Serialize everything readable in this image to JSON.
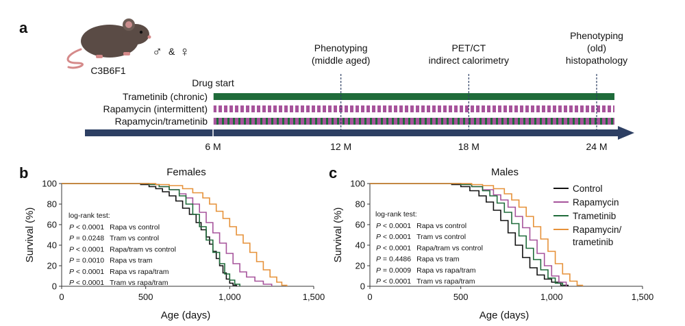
{
  "panel_a": {
    "letter": "a",
    "strain": "C3B6F1",
    "sexes": {
      "male": "♂",
      "amp": "&",
      "female": "♀"
    },
    "drug_start": "Drug start",
    "arms": [
      {
        "label": "Trametinib (chronic)",
        "style": "solid",
        "color": "#1f6b3a"
      },
      {
        "label": "Rapamycin (intermittent)",
        "style": "dashed",
        "color": "#a6539b"
      },
      {
        "label": "Rapamycin/trametinib",
        "style": "alternating",
        "color": "#a6539b",
        "color2": "#1f6b3a"
      }
    ],
    "timeline_color": "#2d3f63",
    "timepoints": [
      {
        "label": "6 M",
        "month": 6,
        "event": []
      },
      {
        "label": "12 M",
        "month": 12,
        "event": [
          "Phenotyping",
          "(middle aged)"
        ]
      },
      {
        "label": "18 M",
        "month": 18,
        "event": [
          "PET/CT",
          "indirect calorimetry"
        ]
      },
      {
        "label": "24 M",
        "month": 24,
        "event": [
          "Phenotyping",
          "(old)",
          "histopathology"
        ]
      }
    ]
  },
  "legend": {
    "items": [
      {
        "label": "Control",
        "color": "#111111"
      },
      {
        "label": "Rapamycin",
        "color": "#a6539b"
      },
      {
        "label": "Trametinib",
        "color": "#1f6b3a"
      },
      {
        "label": "Rapamycin/",
        "label2": "trametinib",
        "color": "#e69138"
      }
    ]
  },
  "chart_data": [
    {
      "type": "line",
      "panel": "b",
      "title": "Females",
      "xlabel": "Age (days)",
      "ylabel": "Survival (%)",
      "xlim": [
        0,
        1500
      ],
      "ylim": [
        0,
        100
      ],
      "xticks": [
        "0",
        "500",
        "1,000",
        "1,500"
      ],
      "yticks": [
        "0",
        "20",
        "40",
        "60",
        "80",
        "100"
      ],
      "stats_header": "log-rank test:",
      "stats": [
        {
          "p": "P",
          "rel": " < 0.0001",
          "comp": "Rapa vs control"
        },
        {
          "p": "P",
          "rel": " = 0.0248",
          "comp": "Tram vs control"
        },
        {
          "p": "P",
          "rel": " < 0.0001",
          "comp": "Rapa/tram vs control"
        },
        {
          "p": "P",
          "rel": " = 0.0010",
          "comp": "Rapa vs tram"
        },
        {
          "p": "P",
          "rel": " < 0.0001",
          "comp": "Rapa vs rapa/tram"
        },
        {
          "p": "P",
          "rel": " < 0.0001",
          "comp": "Tram vs rapa/tram"
        }
      ],
      "series": [
        {
          "name": "Control",
          "color": "#111111",
          "x": [
            0,
            400,
            470,
            520,
            560,
            600,
            640,
            680,
            720,
            760,
            800,
            830,
            860,
            880,
            900,
            920,
            940,
            960,
            980,
            1000,
            1020,
            1040
          ],
          "y": [
            100,
            100,
            99,
            97,
            95,
            92,
            88,
            83,
            76,
            70,
            62,
            55,
            48,
            41,
            34,
            27,
            20,
            13,
            7,
            3,
            1,
            0
          ]
        },
        {
          "name": "Rapamycin",
          "color": "#a6539b",
          "x": [
            0,
            420,
            520,
            580,
            640,
            700,
            740,
            780,
            820,
            860,
            900,
            940,
            980,
            1020,
            1060,
            1100,
            1150,
            1200,
            1250
          ],
          "y": [
            100,
            100,
            99,
            97,
            94,
            90,
            86,
            80,
            72,
            62,
            52,
            42,
            32,
            22,
            14,
            9,
            5,
            2,
            0
          ]
        },
        {
          "name": "Trametinib",
          "color": "#1f6b3a",
          "x": [
            0,
            450,
            520,
            580,
            640,
            700,
            740,
            780,
            820,
            860,
            900,
            940,
            970,
            1000,
            1030,
            1060
          ],
          "y": [
            100,
            100,
            99,
            97,
            94,
            88,
            80,
            70,
            58,
            45,
            33,
            22,
            12,
            6,
            2,
            0
          ]
        },
        {
          "name": "Rapamycin/trametinib",
          "color": "#e69138",
          "x": [
            0,
            480,
            560,
            640,
            720,
            780,
            840,
            880,
            920,
            960,
            1000,
            1040,
            1080,
            1120,
            1160,
            1200,
            1240,
            1280,
            1310,
            1340
          ],
          "y": [
            100,
            100,
            99,
            98,
            95,
            91,
            86,
            80,
            73,
            66,
            58,
            50,
            42,
            33,
            24,
            16,
            9,
            4,
            1,
            0
          ]
        }
      ]
    },
    {
      "type": "line",
      "panel": "c",
      "title": "Males",
      "xlabel": "Age (days)",
      "ylabel": "Survival (%)",
      "xlim": [
        0,
        1500
      ],
      "ylim": [
        0,
        100
      ],
      "xticks": [
        "0",
        "500",
        "1,000",
        "1,500"
      ],
      "yticks": [
        "0",
        "20",
        "40",
        "60",
        "80",
        "100"
      ],
      "stats_header": "log-rank test:",
      "stats": [
        {
          "p": "P",
          "rel": " < 0.0001",
          "comp": "Rapa vs control"
        },
        {
          "p": "P",
          "rel": " < 0.0001",
          "comp": "Tram vs control"
        },
        {
          "p": "P",
          "rel": " < 0.0001",
          "comp": "Rapa/tram vs control"
        },
        {
          "p": "P",
          "rel": " = 0.4486",
          "comp": "Rapa vs tram"
        },
        {
          "p": "P",
          "rel": " = 0.0009",
          "comp": "Rapa vs rapa/tram"
        },
        {
          "p": "P",
          "rel": " < 0.0001",
          "comp": "Tram vs rapa/tram"
        }
      ],
      "series": [
        {
          "name": "Control",
          "color": "#111111",
          "x": [
            0,
            380,
            450,
            500,
            550,
            600,
            640,
            680,
            720,
            760,
            800,
            840,
            880,
            920,
            960,
            1000,
            1050,
            1090
          ],
          "y": [
            100,
            100,
            99,
            97,
            93,
            88,
            82,
            74,
            64,
            52,
            40,
            28,
            18,
            11,
            7,
            4,
            1,
            0
          ]
        },
        {
          "name": "Rapamycin",
          "color": "#a6539b",
          "x": [
            0,
            420,
            500,
            560,
            620,
            680,
            720,
            760,
            800,
            840,
            880,
            920,
            960,
            1000,
            1040,
            1080
          ],
          "y": [
            100,
            100,
            99,
            97,
            94,
            89,
            84,
            77,
            68,
            57,
            45,
            32,
            20,
            10,
            4,
            0
          ]
        },
        {
          "name": "Trametinib",
          "color": "#1f6b3a",
          "x": [
            0,
            440,
            500,
            560,
            620,
            660,
            700,
            740,
            780,
            820,
            860,
            900,
            940,
            980,
            1020,
            1060
          ],
          "y": [
            100,
            100,
            99,
            97,
            93,
            88,
            81,
            72,
            61,
            49,
            37,
            26,
            16,
            8,
            3,
            0
          ]
        },
        {
          "name": "Rapamycin/trametinib",
          "color": "#e69138",
          "x": [
            0,
            480,
            560,
            620,
            680,
            740,
            780,
            820,
            860,
            900,
            940,
            980,
            1020,
            1060,
            1100,
            1140,
            1170
          ],
          "y": [
            100,
            100,
            99,
            98,
            95,
            90,
            84,
            77,
            68,
            58,
            46,
            34,
            22,
            12,
            5,
            1,
            0
          ]
        }
      ]
    }
  ]
}
